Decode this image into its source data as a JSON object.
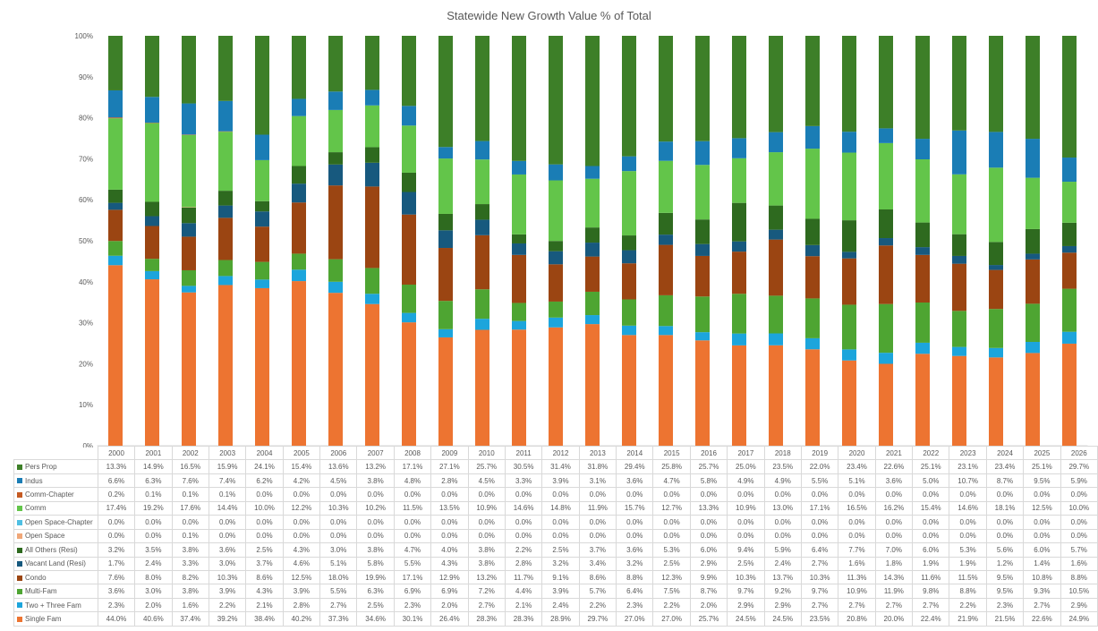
{
  "chart_data": {
    "type": "bar",
    "stacked": true,
    "percent_stacked": true,
    "title": "Statewide New Growth Value % of Total",
    "xlabel": "",
    "ylabel": "",
    "ylim": [
      0,
      100
    ],
    "yticks": [
      "0%",
      "10%",
      "20%",
      "30%",
      "40%",
      "50%",
      "60%",
      "70%",
      "80%",
      "90%",
      "100%"
    ],
    "grid": false,
    "legend": "data-table-below",
    "categories": [
      "2000",
      "2001",
      "2002",
      "2003",
      "2004",
      "2005",
      "2006",
      "2007",
      "2008",
      "2009",
      "2010",
      "2011",
      "2012",
      "2013",
      "2014",
      "2015",
      "2016",
      "2017",
      "2018",
      "2019",
      "2020",
      "2021",
      "2022",
      "2023",
      "2024",
      "2025",
      "2026"
    ],
    "series": [
      {
        "name": "Pers Prop",
        "color": "#3d7f28",
        "values": [
          13.3,
          14.9,
          16.5,
          15.9,
          24.1,
          15.4,
          13.6,
          13.2,
          17.1,
          27.1,
          25.7,
          30.5,
          31.4,
          31.8,
          29.4,
          25.8,
          25.7,
          25.0,
          23.5,
          22.0,
          23.4,
          22.6,
          25.1,
          23.1,
          23.4,
          25.1,
          29.7
        ]
      },
      {
        "name": "Indus",
        "color": "#1a7db5",
        "values": [
          6.6,
          6.3,
          7.6,
          7.4,
          6.2,
          4.2,
          4.5,
          3.8,
          4.8,
          2.8,
          4.5,
          3.3,
          3.9,
          3.1,
          3.6,
          4.7,
          5.8,
          4.9,
          4.9,
          5.5,
          5.1,
          3.6,
          5.0,
          10.7,
          8.7,
          9.5,
          5.9
        ]
      },
      {
        "name": "Comm-Chapter",
        "color": "#c55a22",
        "values": [
          0.2,
          0.1,
          0.1,
          0.1,
          0.0,
          0.0,
          0.0,
          0.0,
          0.0,
          0.0,
          0.0,
          0.0,
          0.0,
          0.0,
          0.0,
          0.0,
          0.0,
          0.0,
          0.0,
          0.0,
          0.0,
          0.0,
          0.0,
          0.0,
          0.0,
          0.0,
          0.0
        ]
      },
      {
        "name": "Comm",
        "color": "#63c54a",
        "values": [
          17.4,
          19.2,
          17.6,
          14.4,
          10.0,
          12.2,
          10.3,
          10.2,
          11.5,
          13.5,
          10.9,
          14.6,
          14.8,
          11.9,
          15.7,
          12.7,
          13.3,
          10.9,
          13.0,
          17.1,
          16.5,
          16.2,
          15.4,
          14.6,
          18.1,
          12.5,
          10.0
        ]
      },
      {
        "name": "Open Space-Chapter",
        "color": "#4fbfe3",
        "values": [
          0.0,
          0.0,
          0.0,
          0.0,
          0.0,
          0.0,
          0.0,
          0.0,
          0.0,
          0.0,
          0.0,
          0.0,
          0.0,
          0.0,
          0.0,
          0.0,
          0.0,
          0.0,
          0.0,
          0.0,
          0.0,
          0.0,
          0.0,
          0.0,
          0.0,
          0.0,
          0.0
        ]
      },
      {
        "name": "Open Space",
        "color": "#f0a778",
        "values": [
          0.0,
          0.0,
          0.1,
          0.0,
          0.0,
          0.0,
          0.0,
          0.0,
          0.0,
          0.0,
          0.0,
          0.0,
          0.0,
          0.0,
          0.0,
          0.0,
          0.0,
          0.0,
          0.0,
          0.0,
          0.0,
          0.0,
          0.0,
          0.0,
          0.0,
          0.0,
          0.0
        ]
      },
      {
        "name": "All Others (Resi)",
        "color": "#2e6a1f",
        "values": [
          3.2,
          3.5,
          3.8,
          3.6,
          2.5,
          4.3,
          3.0,
          3.8,
          4.7,
          4.0,
          3.8,
          2.2,
          2.5,
          3.7,
          3.6,
          5.3,
          6.0,
          9.4,
          5.9,
          6.4,
          7.7,
          7.0,
          6.0,
          5.3,
          5.6,
          6.0,
          5.7
        ]
      },
      {
        "name": "Vacant Land (Resi)",
        "color": "#17597e",
        "values": [
          1.7,
          2.4,
          3.3,
          3.0,
          3.7,
          4.6,
          5.1,
          5.8,
          5.5,
          4.3,
          3.8,
          2.8,
          3.2,
          3.4,
          3.2,
          2.5,
          2.9,
          2.5,
          2.4,
          2.7,
          1.6,
          1.8,
          1.9,
          1.9,
          1.2,
          1.4,
          1.6
        ]
      },
      {
        "name": "Condo",
        "color": "#9b4512",
        "values": [
          7.6,
          8.0,
          8.2,
          10.3,
          8.6,
          12.5,
          18.0,
          19.9,
          17.1,
          12.9,
          13.2,
          11.7,
          9.1,
          8.6,
          8.8,
          12.3,
          9.9,
          10.3,
          13.7,
          10.3,
          11.3,
          14.3,
          11.6,
          11.5,
          9.5,
          10.8,
          8.8
        ]
      },
      {
        "name": "Multi-Fam",
        "color": "#4ea532",
        "values": [
          3.6,
          3.0,
          3.8,
          3.9,
          4.3,
          3.9,
          5.5,
          6.3,
          6.9,
          6.9,
          7.2,
          4.4,
          3.9,
          5.7,
          6.4,
          7.5,
          8.7,
          9.7,
          9.2,
          9.7,
          10.9,
          11.9,
          9.8,
          8.8,
          9.5,
          9.3,
          10.5
        ]
      },
      {
        "name": "Two + Three Fam",
        "color": "#1ca5dc",
        "values": [
          2.3,
          2.0,
          1.6,
          2.2,
          2.1,
          2.8,
          2.7,
          2.5,
          2.3,
          2.0,
          2.7,
          2.1,
          2.4,
          2.2,
          2.3,
          2.2,
          2.0,
          2.9,
          2.9,
          2.7,
          2.7,
          2.7,
          2.7,
          2.2,
          2.3,
          2.7,
          2.9
        ]
      },
      {
        "name": "Single Fam",
        "color": "#ed7431",
        "values": [
          44.0,
          40.6,
          37.4,
          39.2,
          38.4,
          40.2,
          37.3,
          34.6,
          30.1,
          26.4,
          28.3,
          28.3,
          28.9,
          29.7,
          27.0,
          27.0,
          25.7,
          24.5,
          24.5,
          23.5,
          20.8,
          20.0,
          22.4,
          21.9,
          21.5,
          22.6,
          24.9
        ]
      }
    ]
  }
}
